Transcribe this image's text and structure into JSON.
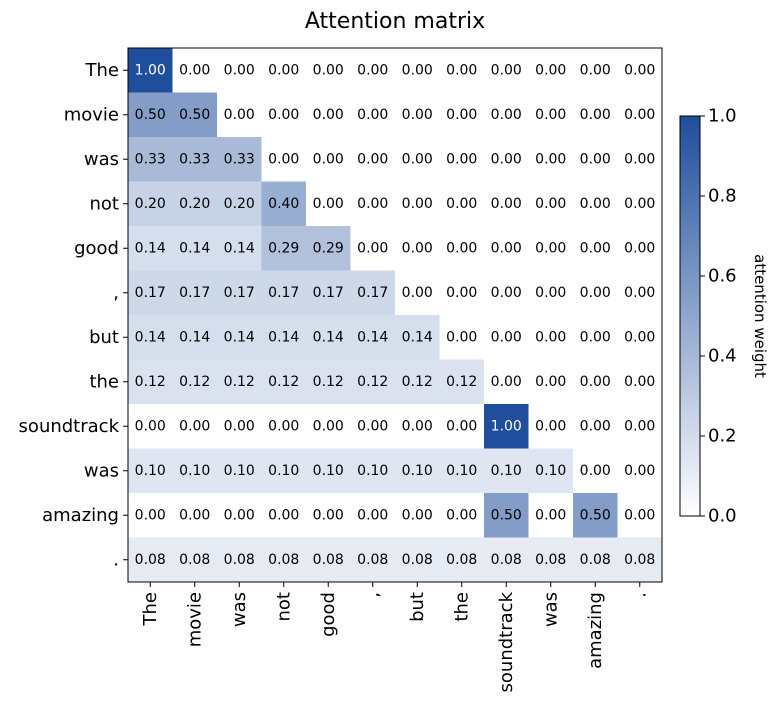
{
  "chart_data": {
    "type": "heatmap",
    "title": "Attention matrix",
    "x_tokens": [
      "The",
      "movie",
      "was",
      "not",
      "good",
      ",",
      "but",
      "the",
      "soundtrack",
      "was",
      "amazing",
      "."
    ],
    "y_tokens": [
      "The",
      "movie",
      "was",
      "not",
      "good",
      ",",
      "but",
      "the",
      "soundtrack",
      "was",
      "amazing",
      "."
    ],
    "values": [
      [
        1.0,
        0.0,
        0.0,
        0.0,
        0.0,
        0.0,
        0.0,
        0.0,
        0.0,
        0.0,
        0.0,
        0.0
      ],
      [
        0.5,
        0.5,
        0.0,
        0.0,
        0.0,
        0.0,
        0.0,
        0.0,
        0.0,
        0.0,
        0.0,
        0.0
      ],
      [
        0.33,
        0.33,
        0.33,
        0.0,
        0.0,
        0.0,
        0.0,
        0.0,
        0.0,
        0.0,
        0.0,
        0.0
      ],
      [
        0.2,
        0.2,
        0.2,
        0.4,
        0.0,
        0.0,
        0.0,
        0.0,
        0.0,
        0.0,
        0.0,
        0.0
      ],
      [
        0.14,
        0.14,
        0.14,
        0.29,
        0.29,
        0.0,
        0.0,
        0.0,
        0.0,
        0.0,
        0.0,
        0.0
      ],
      [
        0.17,
        0.17,
        0.17,
        0.17,
        0.17,
        0.17,
        0.0,
        0.0,
        0.0,
        0.0,
        0.0,
        0.0
      ],
      [
        0.14,
        0.14,
        0.14,
        0.14,
        0.14,
        0.14,
        0.14,
        0.0,
        0.0,
        0.0,
        0.0,
        0.0
      ],
      [
        0.12,
        0.12,
        0.12,
        0.12,
        0.12,
        0.12,
        0.12,
        0.12,
        0.0,
        0.0,
        0.0,
        0.0
      ],
      [
        0.0,
        0.0,
        0.0,
        0.0,
        0.0,
        0.0,
        0.0,
        0.0,
        1.0,
        0.0,
        0.0,
        0.0
      ],
      [
        0.1,
        0.1,
        0.1,
        0.1,
        0.1,
        0.1,
        0.1,
        0.1,
        0.1,
        0.1,
        0.0,
        0.0
      ],
      [
        0.0,
        0.0,
        0.0,
        0.0,
        0.0,
        0.0,
        0.0,
        0.0,
        0.5,
        0.0,
        0.5,
        0.0
      ],
      [
        0.08,
        0.08,
        0.08,
        0.08,
        0.08,
        0.08,
        0.08,
        0.08,
        0.08,
        0.08,
        0.08,
        0.08
      ]
    ],
    "value_format": "0.00",
    "colorbar": {
      "label": "attention weight",
      "range": [
        0.0,
        1.0
      ],
      "ticks": [
        "0.0",
        "0.2",
        "0.4",
        "0.6",
        "0.8",
        "1.0"
      ]
    },
    "colors": {
      "low": "#ffffff",
      "high": "#1f4e9c",
      "text_dark": "#000000",
      "text_light": "#ffffff"
    }
  }
}
